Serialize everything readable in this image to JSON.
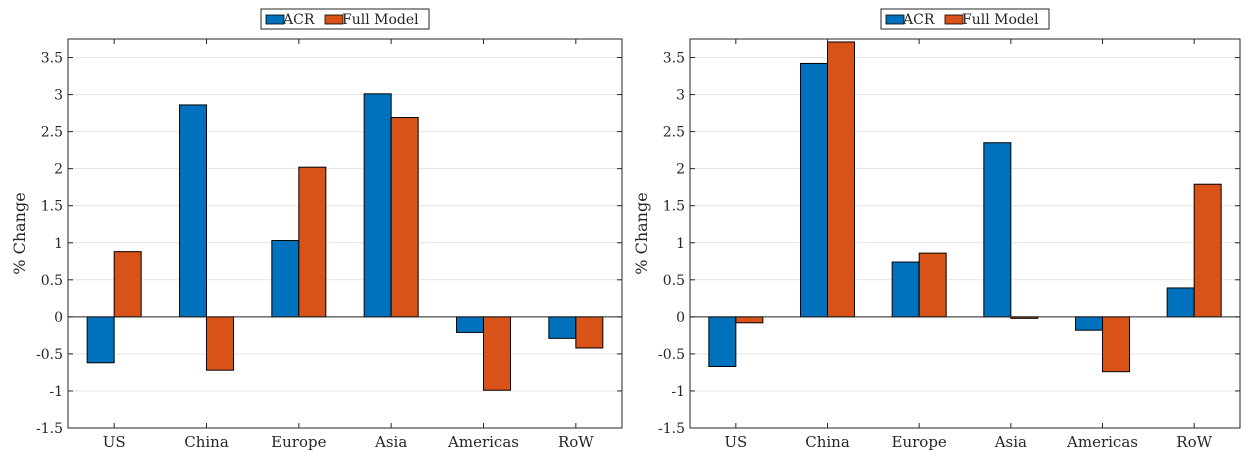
{
  "chart_data": [
    {
      "type": "bar",
      "ylabel": "% Change",
      "ylim": [
        -1.5,
        3.75
      ],
      "yticks": [
        "-1.5",
        "-1",
        "-0.5",
        "0",
        "0.5",
        "1",
        "1.5",
        "2",
        "2.5",
        "3",
        "3.5"
      ],
      "grid": "horizontal",
      "legend_position": "top-center",
      "categories": [
        "US",
        "China",
        "Europe",
        "Asia",
        "Americas",
        "RoW"
      ],
      "series": [
        {
          "name": "ACR",
          "color": "#0072BD",
          "values": [
            -0.62,
            2.86,
            1.03,
            3.01,
            -0.21,
            -0.29
          ]
        },
        {
          "name": "Full Model",
          "color": "#D95319",
          "values": [
            0.88,
            -0.72,
            2.02,
            2.69,
            -0.99,
            -0.42
          ]
        }
      ]
    },
    {
      "type": "bar",
      "ylabel": "% Change",
      "ylim": [
        -1.5,
        3.75
      ],
      "yticks": [
        "-1.5",
        "-1",
        "-0.5",
        "0",
        "0.5",
        "1",
        "1.5",
        "2",
        "2.5",
        "3",
        "3.5"
      ],
      "grid": "horizontal",
      "legend_position": "top-center",
      "categories": [
        "US",
        "China",
        "Europe",
        "Asia",
        "Americas",
        "RoW"
      ],
      "series": [
        {
          "name": "ACR",
          "color": "#0072BD",
          "values": [
            -0.67,
            3.42,
            0.74,
            2.35,
            -0.18,
            0.39
          ]
        },
        {
          "name": "Full Model",
          "color": "#D95319",
          "values": [
            -0.08,
            3.71,
            0.86,
            -0.02,
            -0.74,
            1.79
          ]
        }
      ]
    }
  ]
}
